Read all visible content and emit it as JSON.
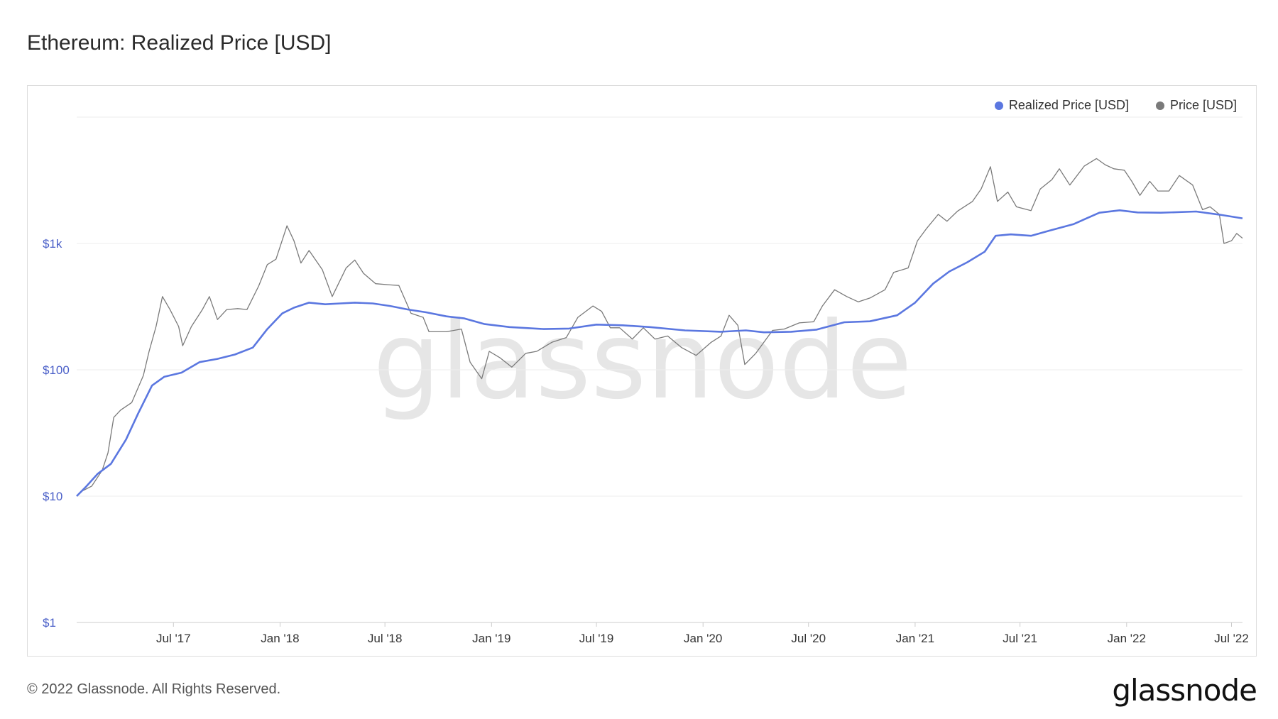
{
  "title": "Ethereum: Realized Price [USD]",
  "footer": {
    "copyright": "© 2022 Glassnode. All Rights Reserved.",
    "logo": "glassnode"
  },
  "watermark": "glassnode",
  "colors": {
    "realized": "#5b77e0",
    "price": "#7a7a7a",
    "grid": "#eeeeee",
    "watermark": "#e6e6e6"
  },
  "chart_data": {
    "type": "line",
    "title": "Ethereum: Realized Price [USD]",
    "y_scale": "log",
    "ylim": [
      1,
      10000
    ],
    "xlim": [
      "2017-01-15",
      "2022-07-20"
    ],
    "y_ticks": [
      {
        "value": 1,
        "label": "$1"
      },
      {
        "value": 10,
        "label": "$10"
      },
      {
        "value": 100,
        "label": "$100"
      },
      {
        "value": 1000,
        "label": "$1k"
      }
    ],
    "x_ticks": [
      {
        "date": "2017-07-01",
        "label": "Jul '17"
      },
      {
        "date": "2018-01-01",
        "label": "Jan '18"
      },
      {
        "date": "2018-07-01",
        "label": "Jul '18"
      },
      {
        "date": "2019-01-01",
        "label": "Jan '19"
      },
      {
        "date": "2019-07-01",
        "label": "Jul '19"
      },
      {
        "date": "2020-01-01",
        "label": "Jan '20"
      },
      {
        "date": "2020-07-01",
        "label": "Jul '20"
      },
      {
        "date": "2021-01-01",
        "label": "Jan '21"
      },
      {
        "date": "2021-07-01",
        "label": "Jul '21"
      },
      {
        "date": "2022-01-01",
        "label": "Jan '22"
      },
      {
        "date": "2022-07-01",
        "label": "Jul '22"
      }
    ],
    "legend_position": "top-right",
    "grid": true,
    "series": [
      {
        "name": "Realized Price [USD]",
        "color": "#5b77e0",
        "points": [
          [
            "2017-01-15",
            10
          ],
          [
            "2017-02-01",
            12
          ],
          [
            "2017-02-20",
            15
          ],
          [
            "2017-03-15",
            18
          ],
          [
            "2017-04-10",
            28
          ],
          [
            "2017-05-01",
            45
          ],
          [
            "2017-05-25",
            75
          ],
          [
            "2017-06-15",
            88
          ],
          [
            "2017-07-15",
            95
          ],
          [
            "2017-08-15",
            115
          ],
          [
            "2017-09-15",
            122
          ],
          [
            "2017-10-15",
            132
          ],
          [
            "2017-11-15",
            150
          ],
          [
            "2017-12-10",
            210
          ],
          [
            "2018-01-05",
            280
          ],
          [
            "2018-01-25",
            310
          ],
          [
            "2018-02-20",
            340
          ],
          [
            "2018-03-20",
            330
          ],
          [
            "2018-04-15",
            335
          ],
          [
            "2018-05-10",
            340
          ],
          [
            "2018-06-10",
            335
          ],
          [
            "2018-07-10",
            320
          ],
          [
            "2018-08-10",
            300
          ],
          [
            "2018-09-10",
            285
          ],
          [
            "2018-10-15",
            265
          ],
          [
            "2018-11-15",
            255
          ],
          [
            "2018-12-20",
            230
          ],
          [
            "2019-02-01",
            218
          ],
          [
            "2019-04-01",
            210
          ],
          [
            "2019-05-15",
            212
          ],
          [
            "2019-07-01",
            228
          ],
          [
            "2019-08-15",
            225
          ],
          [
            "2019-10-01",
            218
          ],
          [
            "2019-12-01",
            205
          ],
          [
            "2020-02-01",
            200
          ],
          [
            "2020-03-15",
            205
          ],
          [
            "2020-04-15",
            198
          ],
          [
            "2020-06-01",
            200
          ],
          [
            "2020-07-15",
            208
          ],
          [
            "2020-09-01",
            238
          ],
          [
            "2020-10-15",
            242
          ],
          [
            "2020-12-01",
            270
          ],
          [
            "2021-01-01",
            340
          ],
          [
            "2021-02-01",
            480
          ],
          [
            "2021-03-01",
            600
          ],
          [
            "2021-04-01",
            710
          ],
          [
            "2021-05-01",
            860
          ],
          [
            "2021-05-20",
            1150
          ],
          [
            "2021-06-15",
            1180
          ],
          [
            "2021-07-20",
            1150
          ],
          [
            "2021-08-20",
            1260
          ],
          [
            "2021-10-01",
            1420
          ],
          [
            "2021-11-15",
            1750
          ],
          [
            "2021-12-20",
            1830
          ],
          [
            "2022-01-20",
            1760
          ],
          [
            "2022-03-01",
            1750
          ],
          [
            "2022-05-01",
            1790
          ],
          [
            "2022-06-10",
            1690
          ],
          [
            "2022-07-20",
            1580
          ]
        ]
      },
      {
        "name": "Price [USD]",
        "color": "#7a7a7a",
        "points": [
          [
            "2017-01-15",
            10
          ],
          [
            "2017-01-25",
            11
          ],
          [
            "2017-02-10",
            12
          ],
          [
            "2017-02-28",
            16
          ],
          [
            "2017-03-10",
            22
          ],
          [
            "2017-03-20",
            42
          ],
          [
            "2017-04-01",
            48
          ],
          [
            "2017-04-20",
            55
          ],
          [
            "2017-05-10",
            90
          ],
          [
            "2017-05-20",
            140
          ],
          [
            "2017-06-01",
            220
          ],
          [
            "2017-06-12",
            380
          ],
          [
            "2017-06-25",
            300
          ],
          [
            "2017-07-10",
            220
          ],
          [
            "2017-07-17",
            155
          ],
          [
            "2017-08-01",
            220
          ],
          [
            "2017-08-20",
            300
          ],
          [
            "2017-09-01",
            380
          ],
          [
            "2017-09-15",
            250
          ],
          [
            "2017-10-01",
            300
          ],
          [
            "2017-10-20",
            305
          ],
          [
            "2017-11-05",
            300
          ],
          [
            "2017-11-25",
            460
          ],
          [
            "2017-12-10",
            680
          ],
          [
            "2017-12-25",
            750
          ],
          [
            "2018-01-13",
            1380
          ],
          [
            "2018-01-25",
            1050
          ],
          [
            "2018-02-06",
            700
          ],
          [
            "2018-02-20",
            880
          ],
          [
            "2018-03-15",
            620
          ],
          [
            "2018-04-01",
            380
          ],
          [
            "2018-04-25",
            640
          ],
          [
            "2018-05-10",
            740
          ],
          [
            "2018-05-25",
            580
          ],
          [
            "2018-06-15",
            480
          ],
          [
            "2018-07-10",
            470
          ],
          [
            "2018-07-25",
            465
          ],
          [
            "2018-08-15",
            280
          ],
          [
            "2018-09-05",
            260
          ],
          [
            "2018-09-15",
            200
          ],
          [
            "2018-10-15",
            200
          ],
          [
            "2018-11-10",
            210
          ],
          [
            "2018-11-25",
            115
          ],
          [
            "2018-12-15",
            85
          ],
          [
            "2018-12-28",
            140
          ],
          [
            "2019-01-15",
            125
          ],
          [
            "2019-02-05",
            105
          ],
          [
            "2019-03-01",
            135
          ],
          [
            "2019-03-20",
            140
          ],
          [
            "2019-04-15",
            165
          ],
          [
            "2019-05-10",
            180
          ],
          [
            "2019-05-30",
            260
          ],
          [
            "2019-06-25",
            320
          ],
          [
            "2019-07-10",
            290
          ],
          [
            "2019-07-25",
            215
          ],
          [
            "2019-08-10",
            215
          ],
          [
            "2019-09-01",
            175
          ],
          [
            "2019-09-20",
            215
          ],
          [
            "2019-10-10",
            175
          ],
          [
            "2019-11-01",
            185
          ],
          [
            "2019-11-25",
            150
          ],
          [
            "2019-12-20",
            130
          ],
          [
            "2020-01-15",
            165
          ],
          [
            "2020-02-01",
            185
          ],
          [
            "2020-02-15",
            270
          ],
          [
            "2020-03-01",
            225
          ],
          [
            "2020-03-13",
            110
          ],
          [
            "2020-04-01",
            135
          ],
          [
            "2020-04-30",
            205
          ],
          [
            "2020-05-20",
            210
          ],
          [
            "2020-06-15",
            235
          ],
          [
            "2020-07-10",
            240
          ],
          [
            "2020-07-25",
            320
          ],
          [
            "2020-08-15",
            430
          ],
          [
            "2020-09-05",
            380
          ],
          [
            "2020-09-25",
            345
          ],
          [
            "2020-10-15",
            370
          ],
          [
            "2020-11-10",
            430
          ],
          [
            "2020-11-25",
            590
          ],
          [
            "2020-12-20",
            640
          ],
          [
            "2021-01-05",
            1050
          ],
          [
            "2021-01-20",
            1300
          ],
          [
            "2021-02-10",
            1700
          ],
          [
            "2021-02-25",
            1500
          ],
          [
            "2021-03-15",
            1800
          ],
          [
            "2021-04-10",
            2150
          ],
          [
            "2021-04-25",
            2700
          ],
          [
            "2021-05-11",
            4050
          ],
          [
            "2021-05-23",
            2150
          ],
          [
            "2021-06-10",
            2550
          ],
          [
            "2021-06-25",
            1950
          ],
          [
            "2021-07-20",
            1820
          ],
          [
            "2021-08-05",
            2700
          ],
          [
            "2021-08-25",
            3200
          ],
          [
            "2021-09-07",
            3900
          ],
          [
            "2021-09-25",
            2900
          ],
          [
            "2021-10-20",
            4100
          ],
          [
            "2021-11-10",
            4700
          ],
          [
            "2021-11-25",
            4200
          ],
          [
            "2021-12-10",
            3900
          ],
          [
            "2021-12-28",
            3800
          ],
          [
            "2022-01-10",
            3100
          ],
          [
            "2022-01-24",
            2400
          ],
          [
            "2022-02-10",
            3100
          ],
          [
            "2022-02-24",
            2600
          ],
          [
            "2022-03-15",
            2600
          ],
          [
            "2022-04-02",
            3450
          ],
          [
            "2022-04-25",
            2900
          ],
          [
            "2022-05-12",
            1850
          ],
          [
            "2022-05-25",
            1950
          ],
          [
            "2022-06-10",
            1700
          ],
          [
            "2022-06-18",
            1000
          ],
          [
            "2022-07-01",
            1050
          ],
          [
            "2022-07-10",
            1200
          ],
          [
            "2022-07-20",
            1100
          ]
        ]
      }
    ]
  }
}
